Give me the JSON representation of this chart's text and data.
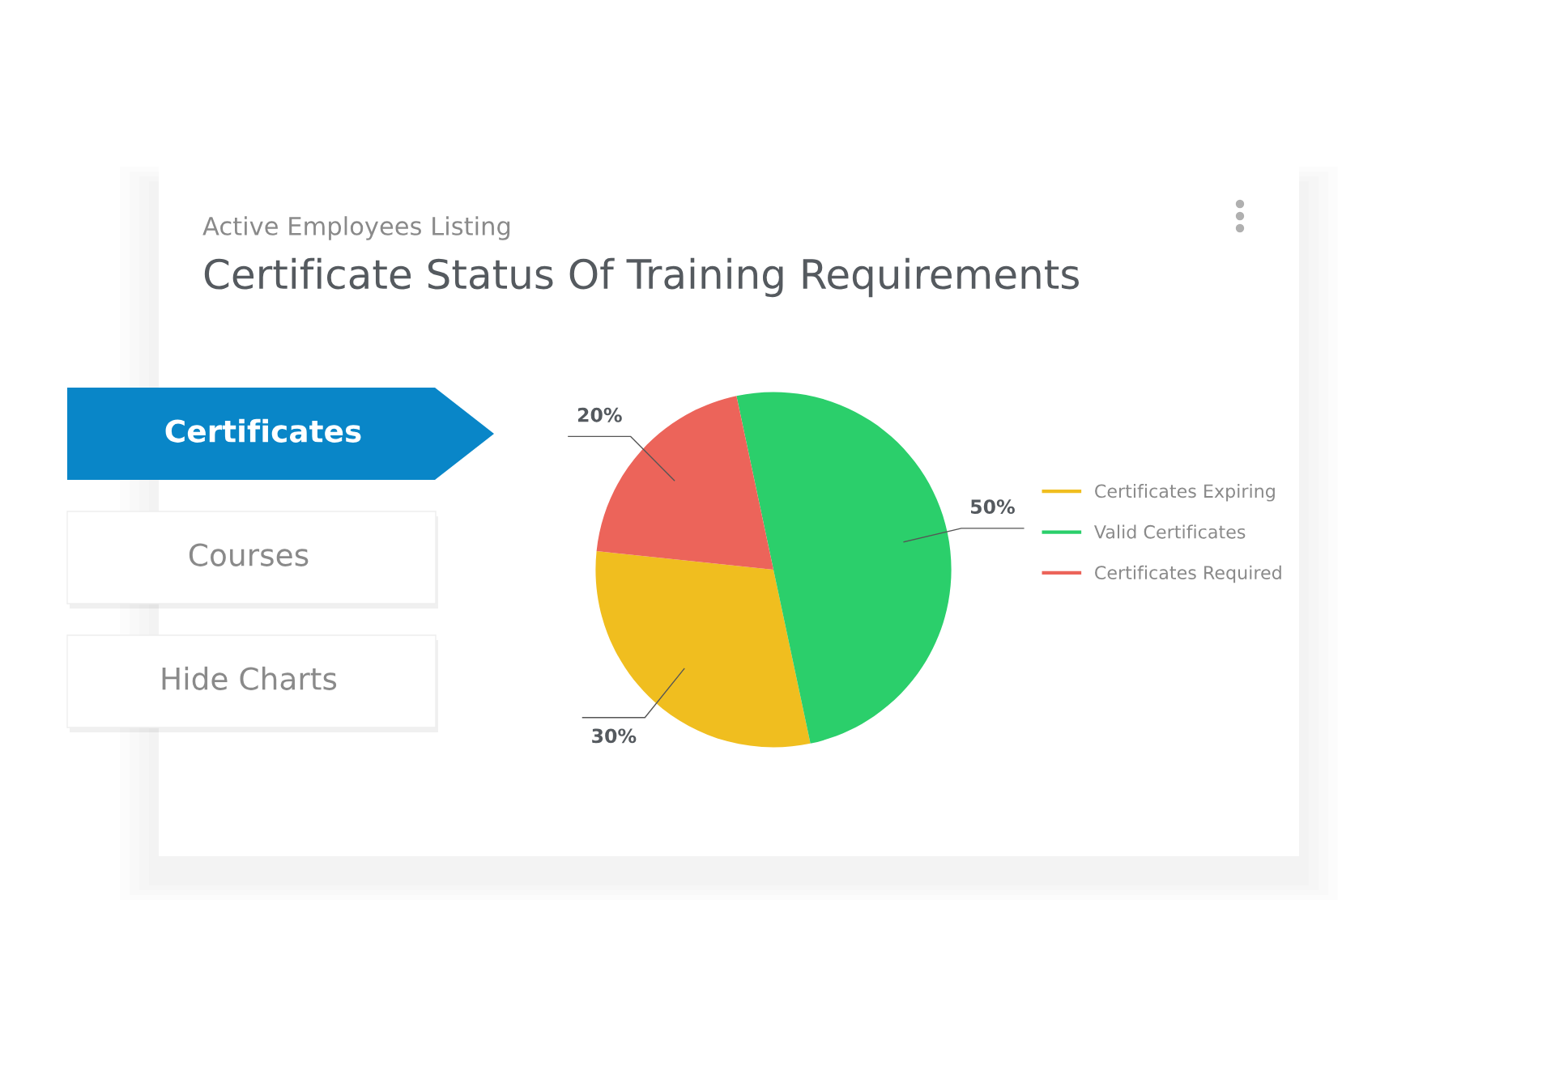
{
  "chart_data": {
    "type": "pie",
    "subtitle": "Active Employees Listing",
    "title": "Certificate Status Of Training Requirements",
    "categories": [
      "Certificates Expiring",
      "Valid Certificates",
      "Certificates Required"
    ],
    "values": [
      30,
      50,
      20
    ],
    "colors": [
      "#f0be1f",
      "#2bcf6b",
      "#ec645a"
    ],
    "value_labels": [
      "30%",
      "50%",
      "20%"
    ],
    "legend": "right",
    "annotations": [
      "Certificates",
      "Courses",
      "Hide Charts"
    ]
  }
}
